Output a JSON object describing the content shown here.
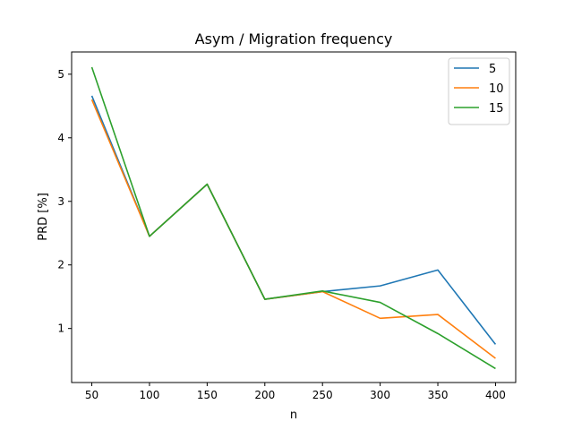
{
  "chart_data": {
    "type": "line",
    "title": "Asym / Migration frequency",
    "xlabel": "n",
    "ylabel": "PRD [%]",
    "x": [
      50,
      100,
      150,
      200,
      250,
      300,
      350,
      400
    ],
    "xlim": [
      32.5,
      417.5
    ],
    "ylim": [
      0.15,
      5.35
    ],
    "xticks": [
      50,
      100,
      150,
      200,
      250,
      300,
      350,
      400
    ],
    "yticks": [
      1,
      2,
      3,
      4,
      5
    ],
    "grid": false,
    "legend_position": "top-right",
    "series": [
      {
        "name": "5",
        "color": "#1f77b4",
        "values": [
          4.66,
          2.45,
          3.27,
          1.46,
          1.58,
          1.67,
          1.92,
          0.75
        ]
      },
      {
        "name": "10",
        "color": "#ff7f0e",
        "values": [
          4.6,
          2.45,
          3.27,
          1.46,
          1.58,
          1.16,
          1.22,
          0.53
        ]
      },
      {
        "name": "15",
        "color": "#2ca02c",
        "values": [
          5.11,
          2.45,
          3.27,
          1.46,
          1.59,
          1.41,
          0.92,
          0.37
        ]
      }
    ]
  }
}
